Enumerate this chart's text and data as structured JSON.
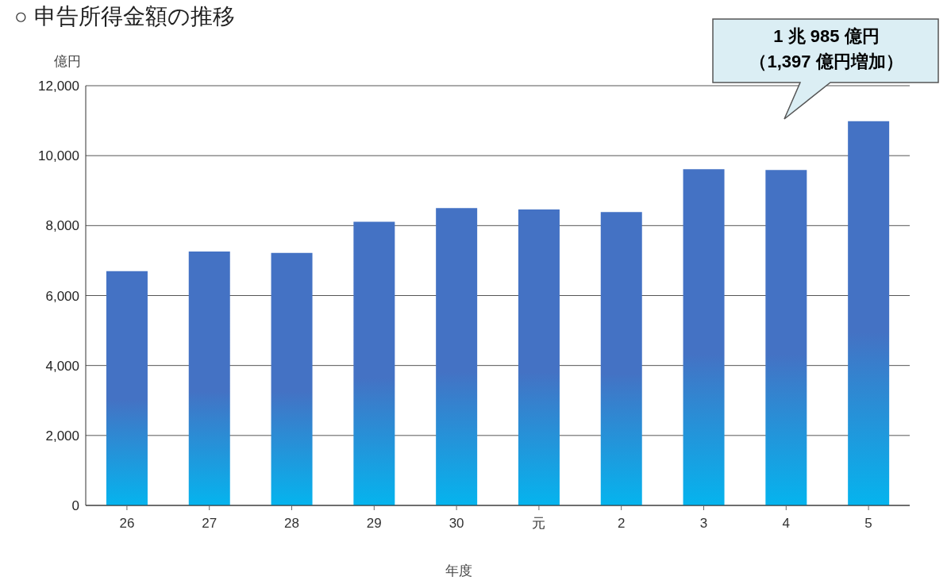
{
  "chart_data": {
    "type": "bar",
    "title": "○ 申告所得金額の推移",
    "ylabel": "億円",
    "xlabel": "年度",
    "categories": [
      "26",
      "27",
      "28",
      "29",
      "30",
      "元",
      "2",
      "3",
      "4",
      "5"
    ],
    "values": [
      6700,
      7260,
      7220,
      8110,
      8500,
      8460,
      8390,
      9610,
      9590,
      10985
    ],
    "color": "#4472c4",
    "ylim": [
      0,
      12000
    ],
    "yticks": [
      0,
      {
        "value": 2000,
        "label": "2,000"
      },
      {
        "value": 4000,
        "label": "4,000"
      },
      {
        "value": 6000,
        "label": "6,000"
      },
      {
        "value": 8000,
        "label": "8,000"
      },
      {
        "value": 10000,
        "label": "10,000"
      },
      {
        "value": 12000,
        "label": "12,000"
      }
    ],
    "grid": "y",
    "annotations": [
      "1 兆 985 億円",
      "（1,397 億円増加）"
    ]
  }
}
